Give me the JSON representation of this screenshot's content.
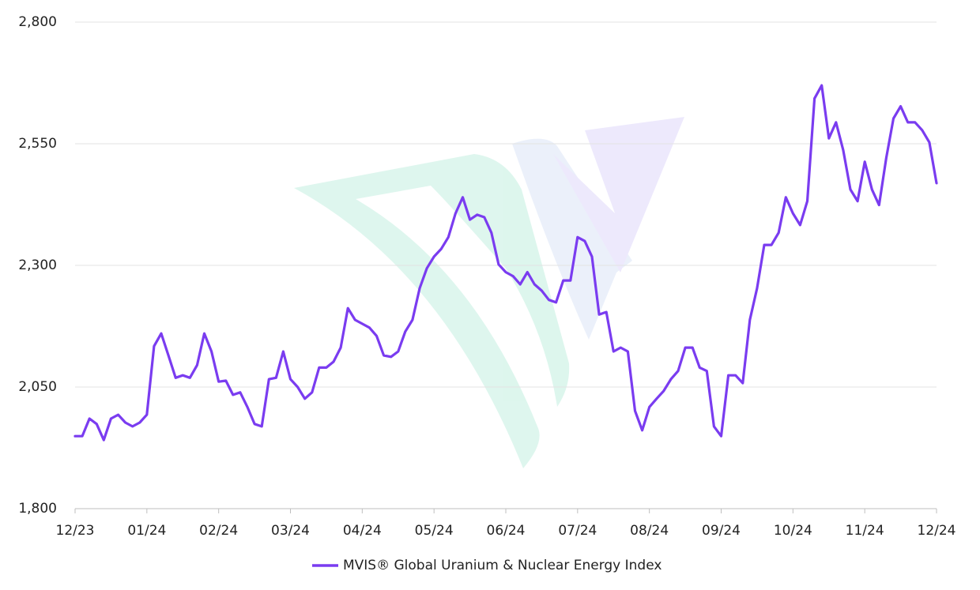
{
  "chart_data": {
    "type": "line",
    "categories": [
      "12/23",
      null,
      null,
      null,
      null,
      null,
      null,
      null,
      null,
      null,
      "01/24",
      null,
      null,
      null,
      null,
      null,
      null,
      null,
      null,
      null,
      "02/24",
      null,
      null,
      null,
      null,
      null,
      null,
      null,
      null,
      null,
      "03/24",
      null,
      null,
      null,
      null,
      null,
      null,
      null,
      null,
      null,
      "04/24",
      null,
      null,
      null,
      null,
      null,
      null,
      null,
      null,
      null,
      "05/24",
      null,
      null,
      null,
      null,
      null,
      null,
      null,
      null,
      null,
      "06/24",
      null,
      null,
      null,
      null,
      null,
      null,
      null,
      null,
      null,
      "07/24",
      null,
      null,
      null,
      null,
      null,
      null,
      null,
      null,
      null,
      "08/24",
      null,
      null,
      null,
      null,
      null,
      null,
      null,
      null,
      null,
      "09/24",
      null,
      null,
      null,
      null,
      null,
      null,
      null,
      null,
      null,
      "10/24",
      null,
      null,
      null,
      null,
      null,
      null,
      null,
      null,
      null,
      "11/24",
      null,
      null,
      null,
      null,
      null,
      null,
      null,
      null,
      null,
      "12/24"
    ],
    "series": [
      {
        "name": "MVIS® Global Uranium & Nuclear Energy Index",
        "color": "#7a3cf0",
        "values": [
          1949,
          1949,
          1985,
          1974,
          1941,
          1985,
          1993,
          1977,
          1969,
          1977,
          1993,
          2134,
          2160,
          2115,
          2069,
          2074,
          2069,
          2095,
          2160,
          2123,
          2061,
          2063,
          2034,
          2039,
          2009,
          1974,
          1969,
          2066,
          2069,
          2123,
          2066,
          2050,
          2026,
          2039,
          2090,
          2090,
          2102,
          2131,
          2212,
          2188,
          2180,
          2172,
          2155,
          2115,
          2112,
          2123,
          2164,
          2188,
          2253,
          2294,
          2318,
          2334,
          2358,
          2407,
          2440,
          2394,
          2404,
          2399,
          2367,
          2302,
          2286,
          2278,
          2261,
          2286,
          2261,
          2248,
          2229,
          2224,
          2269,
          2269,
          2358,
          2350,
          2318,
          2199,
          2204,
          2123,
          2131,
          2123,
          2001,
          1961,
          2009,
          2026,
          2042,
          2066,
          2083,
          2131,
          2131,
          2090,
          2083,
          1969,
          1949,
          2074,
          2074,
          2058,
          2188,
          2253,
          2342,
          2342,
          2367,
          2440,
          2407,
          2383,
          2432,
          2643,
          2670,
          2561,
          2594,
          2537,
          2456,
          2432,
          2513,
          2456,
          2424,
          2521,
          2602,
          2627,
          2594,
          2594,
          2578,
          2553,
          2469
        ]
      }
    ],
    "ylim": [
      1800,
      2800
    ],
    "yticks": [
      {
        "value": 1800,
        "label": "1,800"
      },
      {
        "value": 2050,
        "label": "2,050"
      },
      {
        "value": 2300,
        "label": "2,300"
      },
      {
        "value": 2550,
        "label": "2,550"
      },
      {
        "value": 2800,
        "label": "2,800"
      }
    ],
    "grid": true,
    "legend": "bottom"
  }
}
